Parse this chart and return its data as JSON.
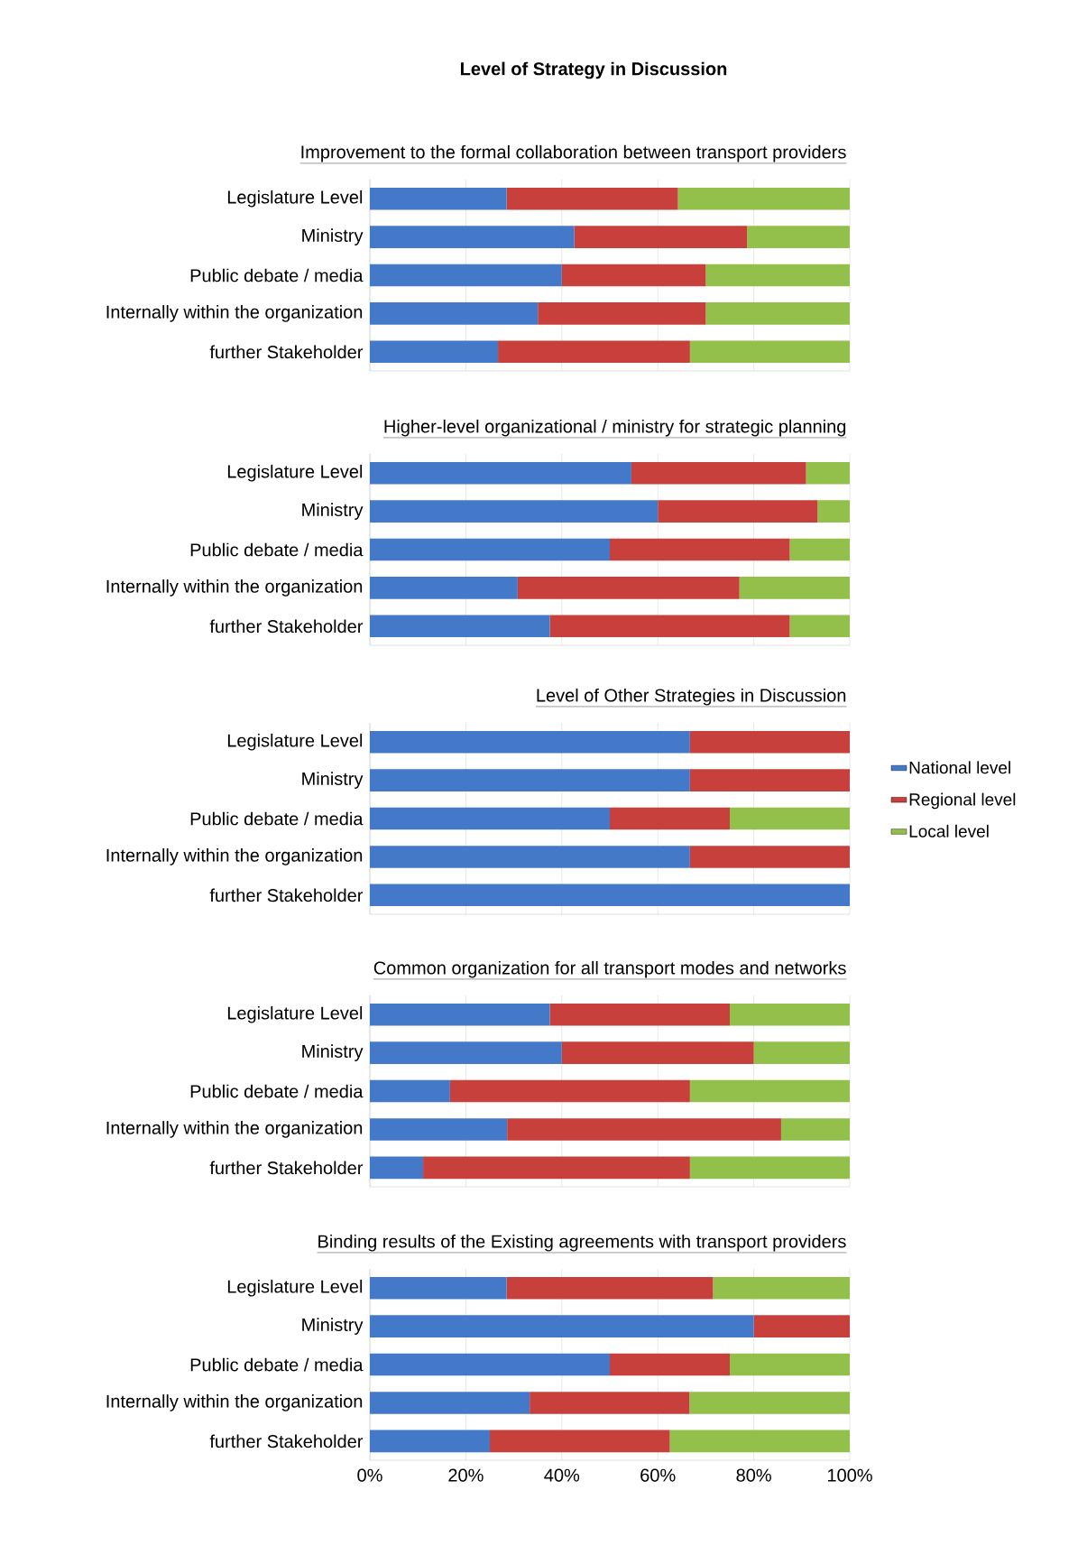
{
  "chart_data": [
    {
      "type": "other",
      "title": "Level of Strategy in Discussion"
    },
    {
      "type": "bar",
      "orientation": "horizontal",
      "stacked": true,
      "title": "Improvement to the formal collaboration between transport providers",
      "categories": [
        "Legislature Level",
        "Ministry",
        "Public debate / media",
        "Internally within the organization",
        "further Stakeholder"
      ],
      "series": [
        {
          "color": "#4478c8",
          "values": [
            28.5,
            42.6,
            40,
            35,
            26.7
          ]
        },
        {
          "color": "#c8403c",
          "values": [
            35.7,
            36,
            30,
            35,
            40
          ]
        },
        {
          "color": "#92c04a",
          "values": [
            35.8,
            21.4,
            30,
            30,
            33.3
          ]
        }
      ],
      "xlim": [
        0,
        100
      ],
      "xticks": [
        0,
        20,
        40,
        60,
        80,
        100
      ],
      "grid": "x",
      "tick_labels": "y"
    },
    {
      "type": "bar",
      "orientation": "horizontal",
      "stacked": true,
      "title": "Higher-level organizational / ministry for strategic planning",
      "categories": [
        "Legislature Level",
        "Ministry",
        "Public debate / media",
        "Internally within the organization",
        "further Stakeholder"
      ],
      "series": [
        {
          "color": "#4478c8",
          "values": [
            54.5,
            60,
            50,
            30.8,
            37.5
          ]
        },
        {
          "color": "#c8403c",
          "values": [
            36.4,
            33.3,
            37.5,
            46.2,
            50
          ]
        },
        {
          "color": "#92c04a",
          "values": [
            9.1,
            6.7,
            12.5,
            23,
            12.5
          ]
        }
      ],
      "xlim": [
        0,
        100
      ],
      "xticks": [
        0,
        20,
        40,
        60,
        80,
        100
      ],
      "grid": "x",
      "tick_labels": "y"
    },
    {
      "type": "bar",
      "orientation": "horizontal",
      "stacked": true,
      "title": "Level of Other Strategies in Discussion",
      "categories": [
        "Legislature Level",
        "Ministry",
        "Public debate / media",
        "Internally within the organization",
        "further Stakeholder"
      ],
      "series": [
        {
          "name": "National level",
          "color": "#4478c8",
          "values": [
            66.7,
            66.7,
            50,
            66.7,
            100
          ]
        },
        {
          "name": "Regional level",
          "color": "#c8403c",
          "values": [
            33.3,
            33.3,
            25,
            33.3,
            0
          ]
        },
        {
          "name": "Local level",
          "color": "#92c04a",
          "values": [
            0,
            0,
            25,
            0,
            0
          ]
        }
      ],
      "xlim": [
        0,
        100
      ],
      "xticks": [
        0,
        20,
        40,
        60,
        80,
        100
      ],
      "grid": "x",
      "tick_labels": "y",
      "legend": "right"
    },
    {
      "type": "bar",
      "orientation": "horizontal",
      "stacked": true,
      "title": "Common  organization for all transport modes and networks",
      "categories": [
        "Legislature Level",
        "Ministry",
        "Public debate / media",
        "Internally within the organization",
        "further Stakeholder"
      ],
      "series": [
        {
          "color": "#4478c8",
          "values": [
            37.5,
            40,
            16.7,
            28.6,
            11.1
          ]
        },
        {
          "color": "#c8403c",
          "values": [
            37.5,
            40,
            50,
            57.1,
            55.6
          ]
        },
        {
          "color": "#92c04a",
          "values": [
            25,
            20,
            33.3,
            14.3,
            33.3
          ]
        }
      ],
      "xlim": [
        0,
        100
      ],
      "xticks": [
        0,
        20,
        40,
        60,
        80,
        100
      ],
      "grid": "x",
      "tick_labels": "y"
    },
    {
      "type": "bar",
      "orientation": "horizontal",
      "stacked": true,
      "title": "Binding results of the Existing agreements with transport providers",
      "categories": [
        "Legislature Level",
        "Ministry",
        "Public debate / media",
        "Internally within the organization",
        "further Stakeholder"
      ],
      "series": [
        {
          "color": "#4478c8",
          "values": [
            28.5,
            80,
            50,
            33.3,
            25
          ]
        },
        {
          "color": "#c8403c",
          "values": [
            43,
            20,
            25,
            33.3,
            37.5
          ]
        },
        {
          "color": "#92c04a",
          "values": [
            28.5,
            0,
            25,
            33.4,
            37.5
          ]
        }
      ],
      "xlim": [
        0,
        100
      ],
      "xticks": [
        {
          "value": 0,
          "label": "0%"
        },
        {
          "value": 20,
          "label": "20%"
        },
        {
          "value": 40,
          "label": "40%"
        },
        {
          "value": 60,
          "label": "60%"
        },
        {
          "value": 80,
          "label": "80%"
        },
        {
          "value": 100,
          "label": "100%"
        }
      ],
      "grid": "x"
    }
  ]
}
